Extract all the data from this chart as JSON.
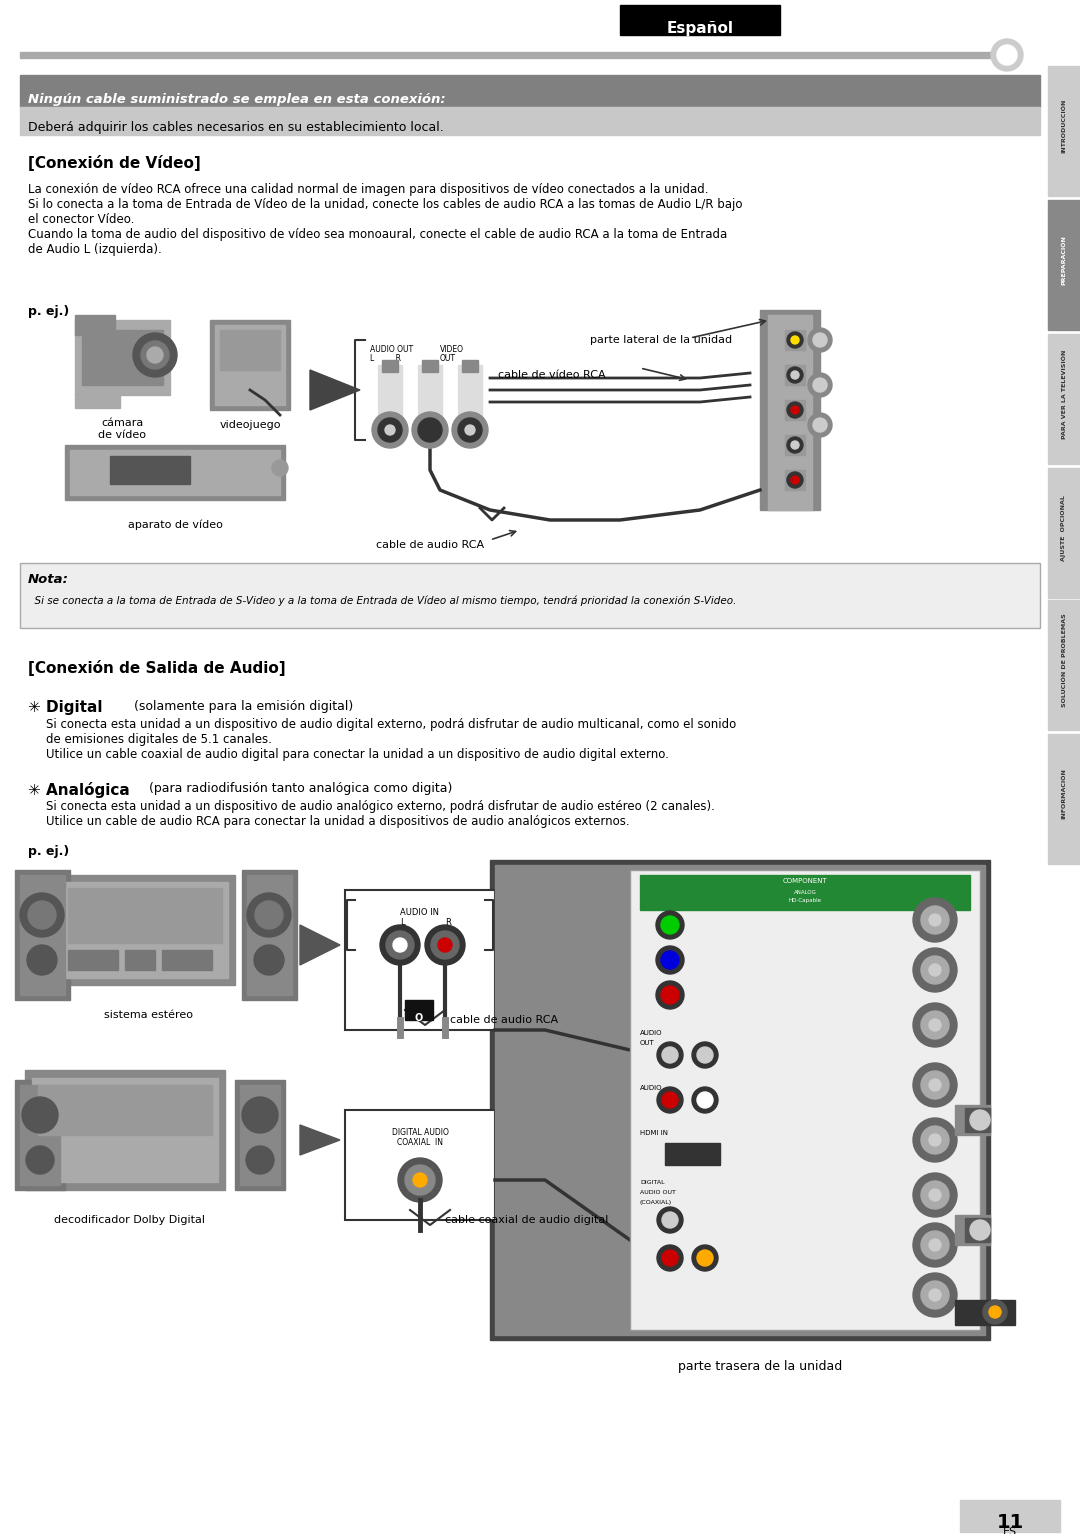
{
  "page_width": 10.8,
  "page_height": 15.34,
  "bg_color": "#ffffff",
  "espanol_text": "Español",
  "sidebar_labels": [
    "INTRODUCCIÓN",
    "PREPARACIÓN",
    "PARA VER LA TELEVISIÓN",
    "AJUSTE  OPCIONAL",
    "SOLUCIÓN DE PROBLEMAS",
    "INFORMACIÓN"
  ],
  "sidebar_active": 1,
  "notice_title": "Ningún cable suministrado se emplea en esta conexión:",
  "notice_subtitle": "Deberá adquirir los cables necesarios en su establecimiento local.",
  "section1_title": "[Conexión de Vídeo]",
  "section1_body": "La conexión de vídeo RCA ofrece una calidad normal de imagen para dispositivos de vídeo conectados a la unidad.\nSi lo conecta a la toma de Entrada de Vídeo de la unidad, conecte los cables de audio RCA a las tomas de Audio L/R bajo\nel conector Vídeo.\nCuando la toma de audio del dispositivo de vídeo sea monoaural, conecte el cable de audio RCA a la toma de Entrada\nde Audio L (izquierda).",
  "nota_title": "Nota:",
  "nota_body": "  Si se conecta a la toma de Entrada de S-Video y a la toma de Entrada de Vídeo al mismo tiempo, tendrá prioridad la conexión S-Video.",
  "section2_title": "[Conexión de Salida de Audio]",
  "digital_bold": "✳ Digital",
  "digital_normal": " (solamente para la emisión digital)",
  "digital_body": "Si conecta esta unidad a un dispositivo de audio digital externo, podrá disfrutar de audio multicanal, como el sonido\nde emisiones digitales de 5.1 canales.\nUtilice un cable coaxial de audio digital para conectar la unidad a un dispositivo de audio digital externo.",
  "analogica_bold": "✳ Analógica",
  "analogica_normal": " (para radiodifusión tanto analógica como digita)",
  "analogica_body": "Si conecta esta unidad a un dispositivo de audio analógico externo, podrá disfrutar de audio estéreo (2 canales).\nUtilice un cable de audio RCA para conectar la unidad a dispositivos de audio analógicos externos.",
  "label_pej": "p. ej.)",
  "label_camara": "cámara\nde vídeo",
  "label_videojuego": "videojuego",
  "label_aparato": "aparato de vídeo",
  "label_cable_video": "cable de vídeo RCA",
  "label_cable_audio": "cable de audio RCA",
  "label_parte_lateral": "parte lateral de la unidad",
  "label_sistema": "sistema estéreo",
  "label_dolby": "decodificador Dolby Digital",
  "label_cable_rca": "cable de audio RCA",
  "label_cable_coaxial": "cable coaxial de audio digital",
  "label_parte_trasera": "parte trasera de la unidad",
  "page_num": "11",
  "page_label": "ES"
}
